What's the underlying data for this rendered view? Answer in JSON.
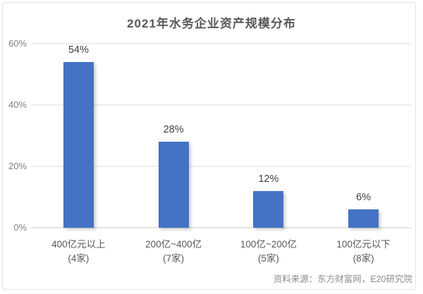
{
  "frame": {
    "background": "#ffffff",
    "border_color": "#e2e2e2"
  },
  "chart_data": {
    "type": "bar",
    "title": "2021年水务企业资产规模分布",
    "categories": [
      "400亿元以上",
      "200亿~400亿",
      "100亿~200亿",
      "100亿元以下"
    ],
    "category_sublabels": [
      "(4家)",
      "(7家)",
      "(5家)",
      "(8家)"
    ],
    "values": [
      54,
      28,
      12,
      6
    ],
    "value_labels": [
      "54%",
      "28%",
      "12%",
      "6%"
    ],
    "yticks": [
      0,
      20,
      40,
      60
    ],
    "ytick_labels": [
      "0%",
      "20%",
      "40%",
      "60%"
    ],
    "ylim": [
      0,
      60
    ],
    "grid": true,
    "legend_position": "none",
    "bar_color": "#4472C4",
    "source_note": "资料来源：东方财富网，E20研究院"
  },
  "colors": {
    "title_text": "#595959",
    "axis_text": "#808080",
    "value_label_text": "#404040",
    "category_text": "#595959",
    "source_text": "#8c8c8c",
    "gridline": "#eeeeee",
    "axis_line": "#e3e3e3",
    "bar": "#4472C4"
  }
}
